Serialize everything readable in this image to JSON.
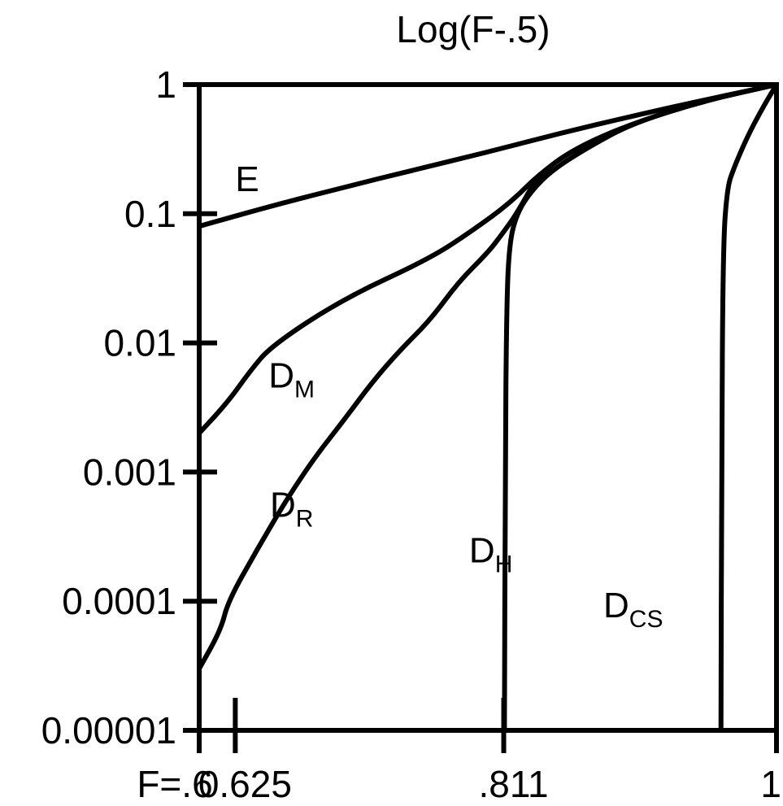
{
  "chart_data": {
    "type": "line",
    "title": "Log(F-.5)",
    "xlabel": "",
    "ylabel": "",
    "yscale": "log",
    "ylim": [
      1e-05,
      1
    ],
    "xlim": [
      0.6,
      1
    ],
    "grid": false,
    "x_ticks": [
      {
        "value": 0.6,
        "label": "F=.6"
      },
      {
        "value": 0.625,
        "label": "0.625"
      },
      {
        "value": 0.811,
        "label": ".811"
      },
      {
        "value": 1,
        "label": "1"
      }
    ],
    "y_ticks": [
      {
        "value": 1,
        "label": "1"
      },
      {
        "value": 0.1,
        "label": "0.1"
      },
      {
        "value": 0.01,
        "label": "0.01"
      },
      {
        "value": 0.001,
        "label": "0.001"
      },
      {
        "value": 0.0001,
        "label": "0.0001"
      },
      {
        "value": 1e-05,
        "label": "0.00001"
      }
    ],
    "series": [
      {
        "name": "E",
        "label_main": "E",
        "label_sub": "",
        "label_at": {
          "x": 0.625,
          "y": 0.15
        },
        "x": [
          0.6,
          0.65,
          0.7,
          0.75,
          0.8,
          0.85,
          0.9,
          0.95,
          1.0
        ],
        "y": [
          0.08,
          0.115,
          0.16,
          0.22,
          0.3,
          0.42,
          0.57,
          0.76,
          1.0
        ]
      },
      {
        "name": "DM",
        "label_main": "D",
        "label_sub": "M",
        "label_at": {
          "x": 0.648,
          "y": 0.0045
        },
        "x": [
          0.6,
          0.62,
          0.635,
          0.65,
          0.7,
          0.76,
          0.79,
          0.815,
          0.835,
          0.86,
          0.9,
          0.95,
          1.0
        ],
        "y": [
          0.002,
          0.0035,
          0.006,
          0.0095,
          0.022,
          0.045,
          0.075,
          0.12,
          0.2,
          0.32,
          0.5,
          0.75,
          1.0
        ]
      },
      {
        "name": "DR",
        "label_main": "D",
        "label_sub": "R",
        "label_at": {
          "x": 0.649,
          "y": 0.00045
        },
        "x": [
          0.6,
          0.615,
          0.62,
          0.64,
          0.66,
          0.68,
          0.7,
          0.72,
          0.74,
          0.76,
          0.78,
          0.8,
          0.81,
          0.82,
          0.835,
          0.86,
          0.9,
          0.95,
          1.0
        ],
        "y": [
          3e-05,
          6e-05,
          0.0001,
          0.00025,
          0.0006,
          0.0013,
          0.0025,
          0.005,
          0.009,
          0.015,
          0.03,
          0.05,
          0.07,
          0.1,
          0.2,
          0.32,
          0.5,
          0.75,
          1.0
        ]
      },
      {
        "name": "DH",
        "label_main": "D",
        "label_sub": "H",
        "label_at": {
          "x": 0.787,
          "y": 0.0002
        },
        "x": [
          0.8115,
          0.812,
          0.813,
          0.815,
          0.82,
          0.83,
          0.845,
          0.87,
          0.9,
          0.95,
          1.0
        ],
        "y": [
          1e-05,
          0.001,
          0.02,
          0.06,
          0.1,
          0.15,
          0.22,
          0.33,
          0.5,
          0.75,
          1.0
        ]
      },
      {
        "name": "DCS",
        "label_main": "D",
        "label_sub": "CS",
        "label_at": {
          "x": 0.88,
          "y": 7.5e-05
        },
        "x": [
          0.9615,
          0.962,
          0.963,
          0.966,
          0.97,
          0.98,
          0.99,
          1.0
        ],
        "y": [
          1e-05,
          0.001,
          0.06,
          0.16,
          0.22,
          0.4,
          0.65,
          1.0
        ]
      }
    ]
  }
}
